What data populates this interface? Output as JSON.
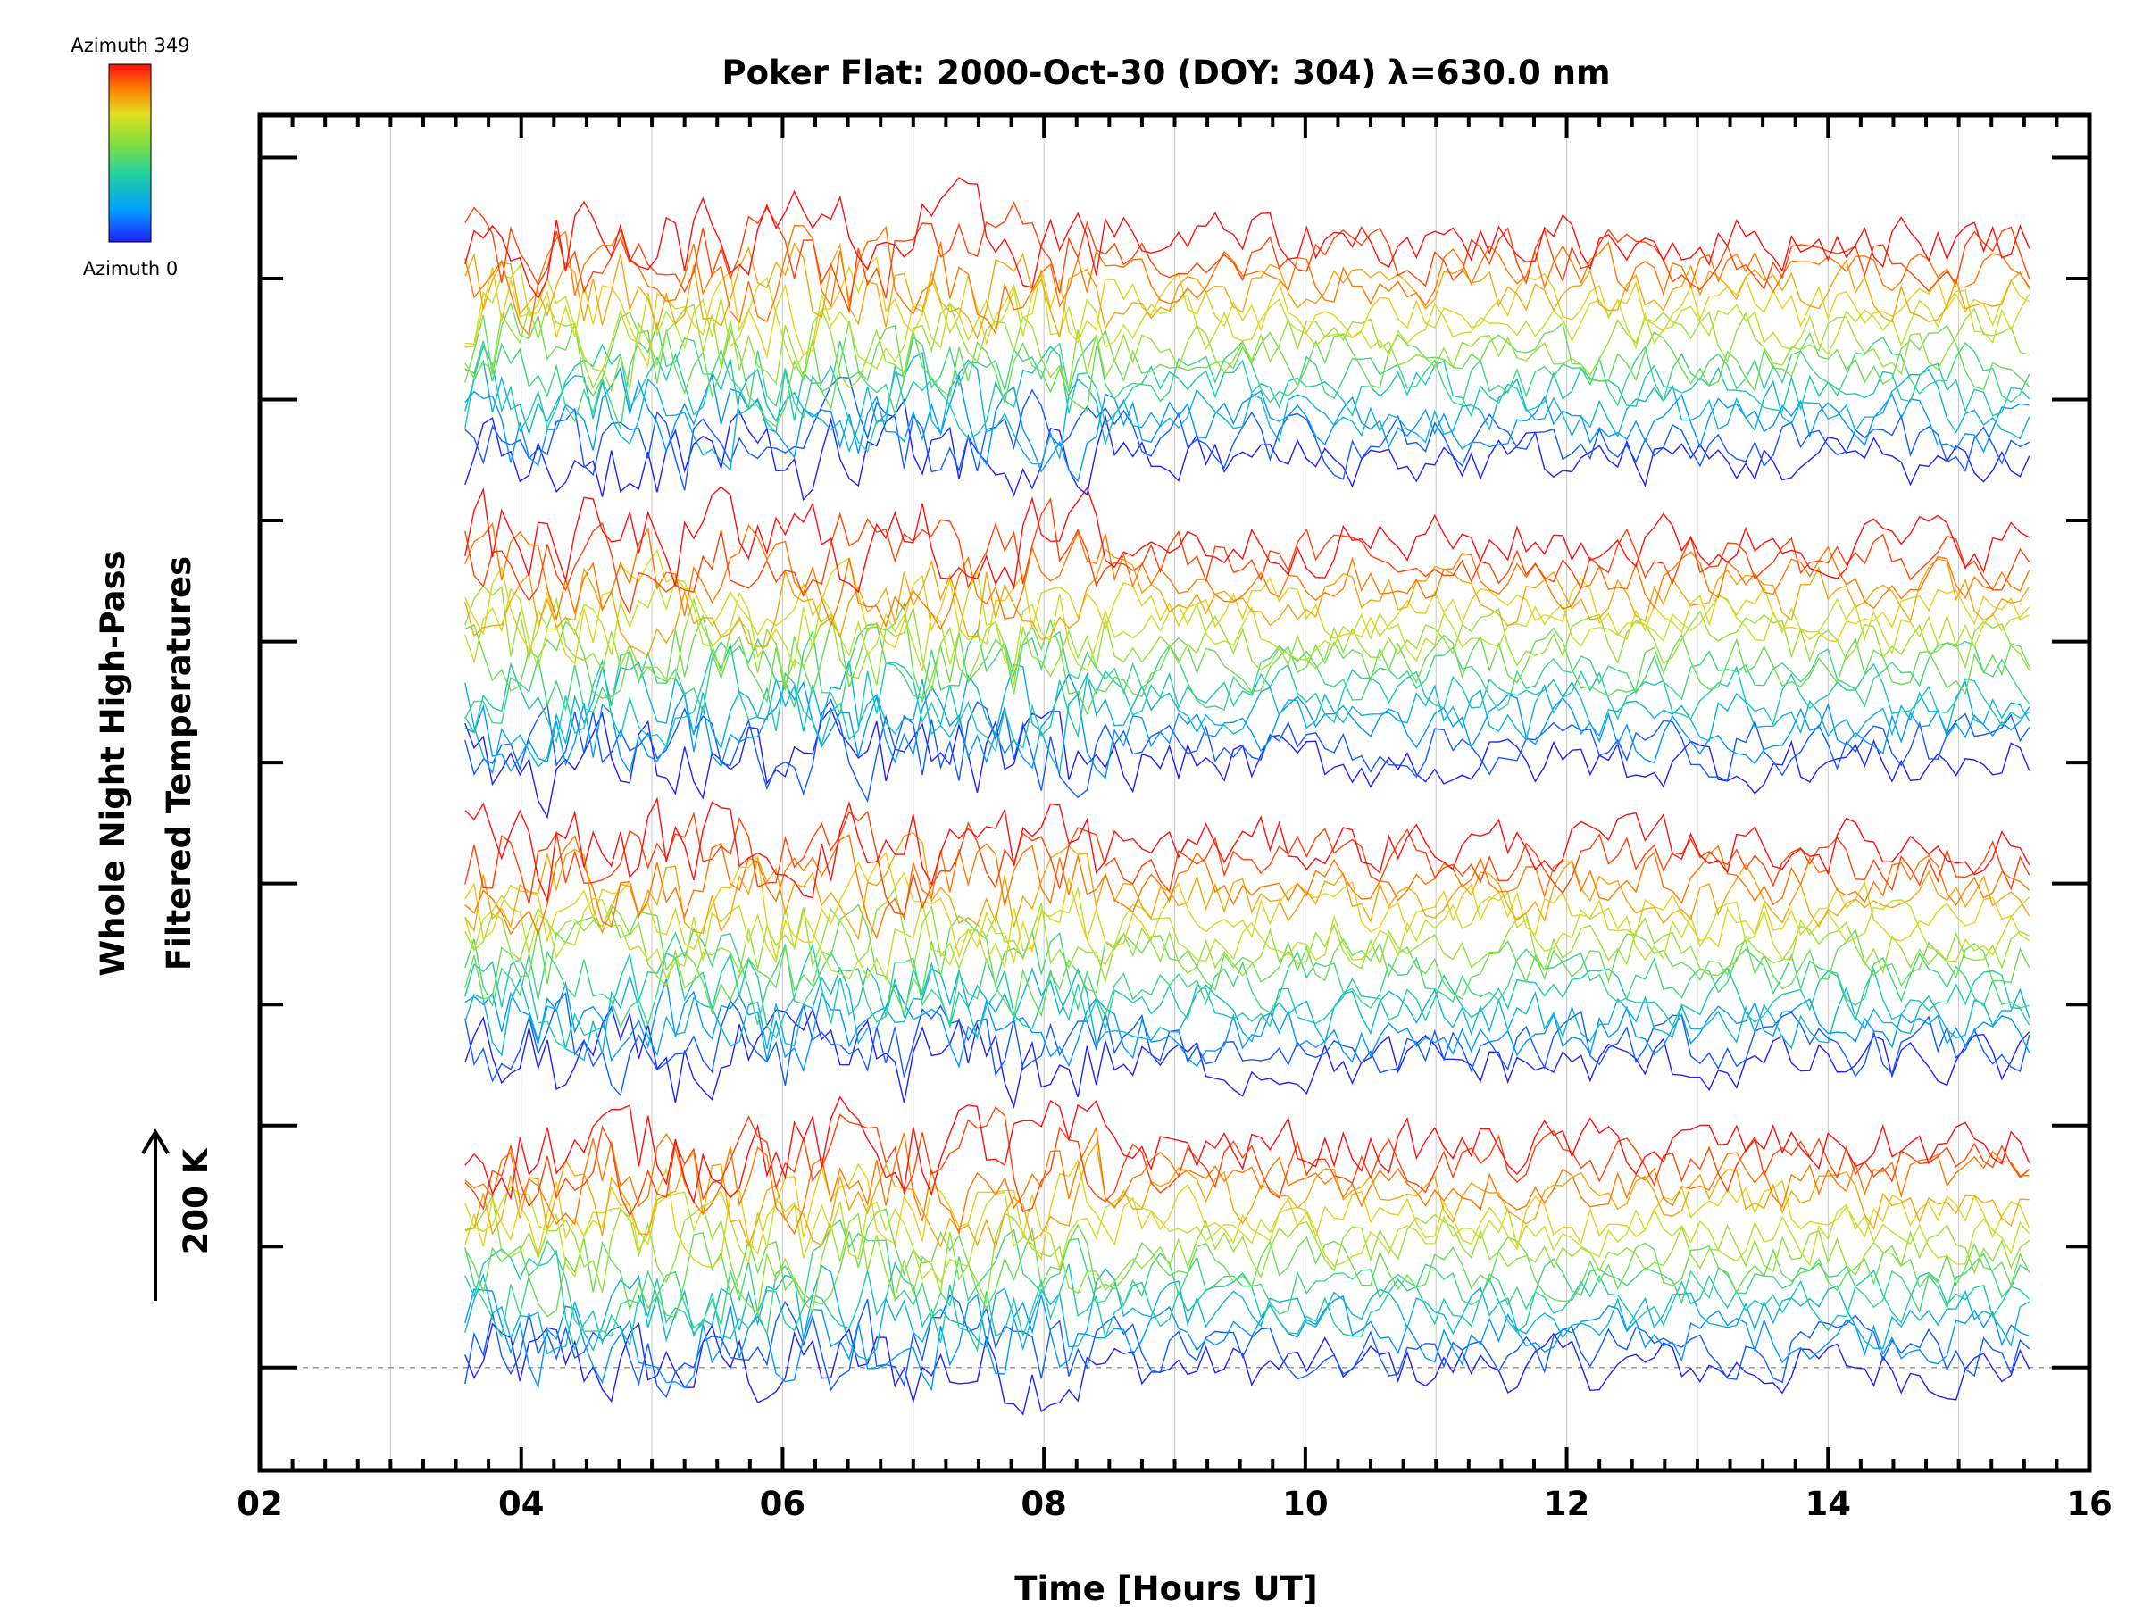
{
  "chart_data": {
    "type": "line",
    "title": "Poker Flat: 2000-Oct-30 (DOY: 304) λ=630.0 nm",
    "xlabel": "Time [Hours UT]",
    "ylabel": "Whole Night High-Pass Filtered Temperatures",
    "ylabel_lines": [
      "Whole Night High-Pass",
      "Filtered Temperatures"
    ],
    "x_unit": "hours UT",
    "xlim": [
      2,
      16
    ],
    "x_ticks": [
      "02",
      "04",
      "06",
      "08",
      "10",
      "12",
      "14",
      "16"
    ],
    "x_tick_values": [
      2,
      4,
      6,
      8,
      10,
      12,
      14,
      16
    ],
    "vertical_gridlines_at": [
      3,
      4,
      5,
      6,
      7,
      8,
      9,
      10,
      11,
      12,
      13,
      14,
      15
    ],
    "data_start_hour": 3.57,
    "data_end_hour": 15.6,
    "sample_spacing_hours": 0.07,
    "y_tick_labels_shown": false,
    "ylim_k": [
      -170,
      2070
    ],
    "major_tick_spacing_k": 400,
    "minor_tick_spacing_k": 200,
    "baseline_k": 0,
    "scale_bar": {
      "label": "200 K",
      "value_k": 200,
      "direction": "up"
    },
    "colorbar": {
      "top_label": "Azimuth 349",
      "bottom_label": "Azimuth 0",
      "min_azimuth": 0,
      "max_azimuth": 349,
      "colormap": "rainbow (blue → cyan → green → yellow → red)",
      "colors": [
        "#2020ff",
        "#00a0ff",
        "#20d0a0",
        "#80e040",
        "#e0e020",
        "#ff8000",
        "#ff1010"
      ]
    },
    "series_count": 56,
    "series_group_spacing_k": 500,
    "series_groups": [
      {
        "group": 1,
        "baseline_k": 0,
        "azimuth_range": [
          0,
          349
        ]
      },
      {
        "group": 2,
        "baseline_k": 500,
        "azimuth_range": [
          0,
          349
        ]
      },
      {
        "group": 3,
        "baseline_k": 1000,
        "azimuth_range": [
          0,
          349
        ]
      },
      {
        "group": 4,
        "baseline_k": 1500,
        "azimuth_range": [
          0,
          349
        ]
      }
    ],
    "within_group_offset_k": 28,
    "noise_amplitude_k": 40,
    "grid": "vertical dotted gridlines at each hour",
    "baseline_line": "dashed horizontal line at 0 K"
  }
}
